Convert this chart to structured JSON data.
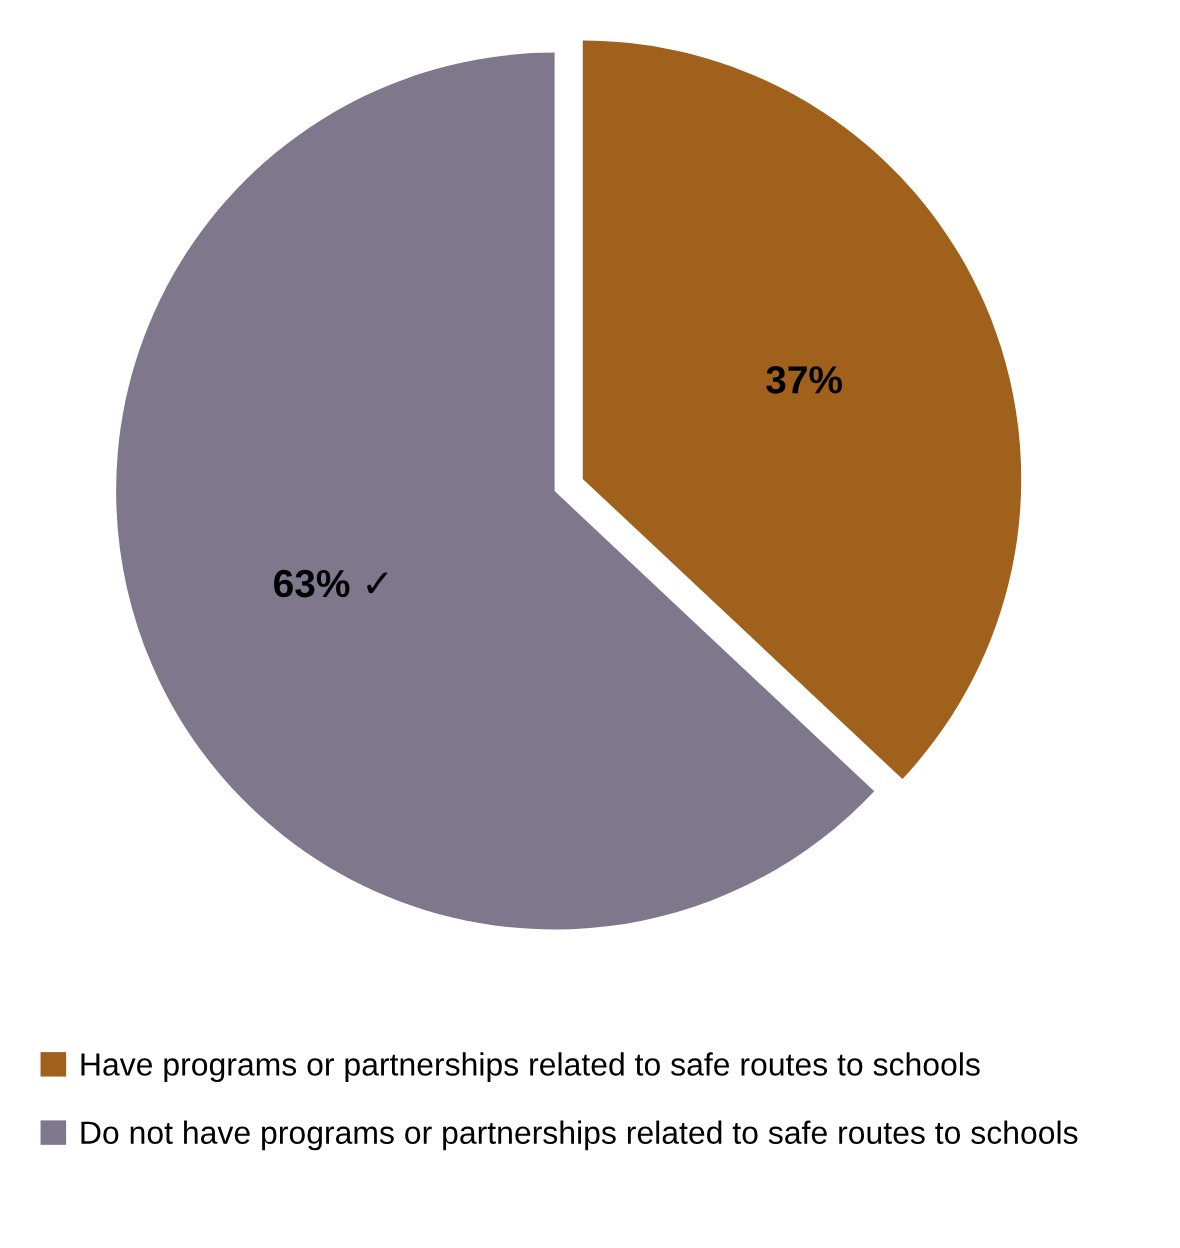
{
  "chart_data": {
    "type": "pie",
    "categories": [
      "Have programs or partnerships related to safe routes to schools",
      "Do not have programs or partnerships related to safe routes to schools"
    ],
    "values": [
      37,
      63
    ],
    "colors": [
      "#a0611c",
      "#7f778c"
    ],
    "value_labels": [
      "37%",
      "63% ✓"
    ],
    "legend": "bottom"
  }
}
